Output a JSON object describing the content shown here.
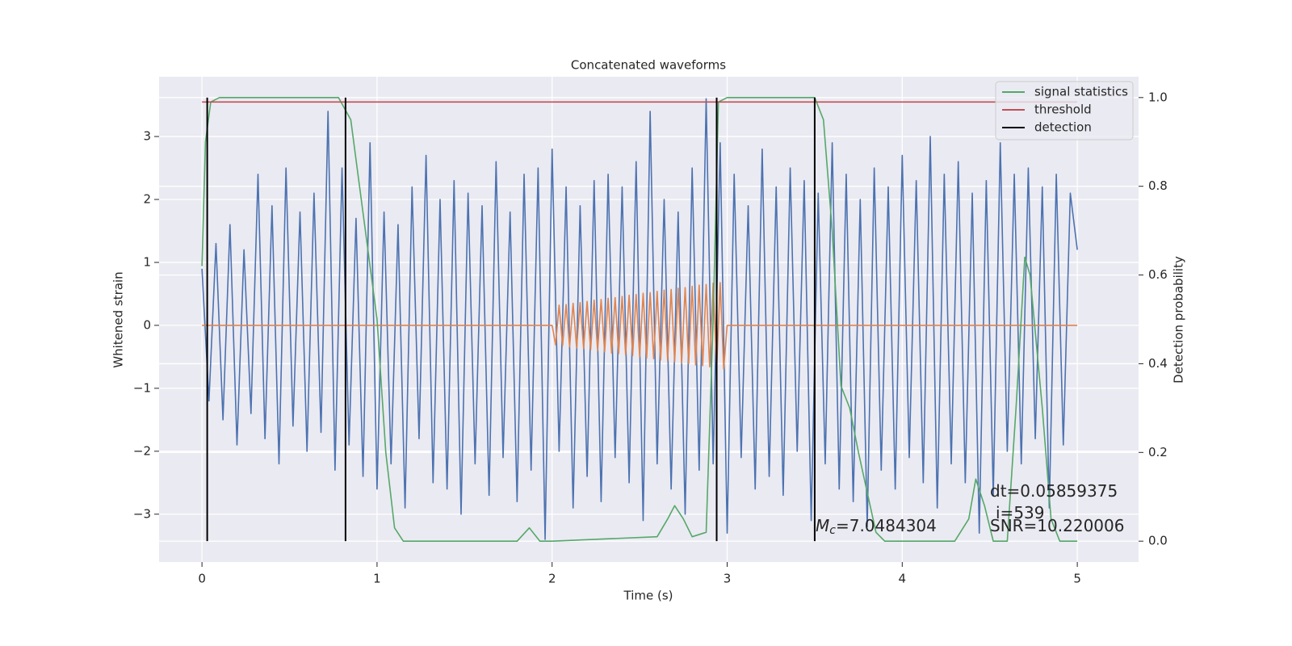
{
  "chart_data": {
    "type": "line",
    "title": "Concatenated waveforms",
    "xlabel": "Time (s)",
    "ylabel": "Whitened strain",
    "y2label": "Detection probability",
    "xlim": [
      -0.245,
      5.35
    ],
    "ylim": [
      -3.76,
      3.95
    ],
    "y2lim": [
      -0.047,
      1.047
    ],
    "xticks": [
      0,
      1,
      2,
      3,
      4,
      5
    ],
    "yticks": [
      {
        "value": -3,
        "label": "−3"
      },
      {
        "value": -2,
        "label": "−2"
      },
      {
        "value": -1,
        "label": "−1"
      },
      0,
      1,
      2,
      3
    ],
    "y2ticks": [
      {
        "value": 0,
        "label": "0.0"
      },
      {
        "value": 0.2,
        "label": "0.2"
      },
      {
        "value": 0.4,
        "label": "0.4"
      },
      {
        "value": 0.6,
        "label": "0.6"
      },
      {
        "value": 0.8,
        "label": "0.8"
      },
      {
        "value": 1,
        "label": "1.0"
      }
    ],
    "grid": true,
    "background": "#eaeaf2",
    "legend": "upper right",
    "series": [
      {
        "color": "#4c72b0",
        "x": [
          0,
          0.04,
          0.08,
          0.12,
          0.16,
          0.2,
          0.24,
          0.28,
          0.32,
          0.36,
          0.4,
          0.44,
          0.48,
          0.52,
          0.56,
          0.6,
          0.64,
          0.68,
          0.72,
          0.76,
          0.8,
          0.84,
          0.88,
          0.92,
          0.96,
          1,
          1.04,
          1.08,
          1.12,
          1.16,
          1.2,
          1.24,
          1.28,
          1.32,
          1.36,
          1.4,
          1.44,
          1.48,
          1.52,
          1.56,
          1.6,
          1.64,
          1.68,
          1.72,
          1.76,
          1.8,
          1.84,
          1.88,
          1.92,
          1.96,
          2,
          2.04,
          2.08,
          2.12,
          2.16,
          2.2,
          2.24,
          2.28,
          2.32,
          2.36,
          2.4,
          2.44,
          2.48,
          2.52,
          2.56,
          2.6,
          2.64,
          2.68,
          2.72,
          2.76,
          2.8,
          2.84,
          2.88,
          2.92,
          2.96,
          3,
          3.04,
          3.08,
          3.12,
          3.16,
          3.2,
          3.24,
          3.28,
          3.32,
          3.36,
          3.4,
          3.44,
          3.48,
          3.52,
          3.56,
          3.6,
          3.64,
          3.68,
          3.72,
          3.76,
          3.8,
          3.84,
          3.88,
          3.92,
          3.96,
          4,
          4.04,
          4.08,
          4.12,
          4.16,
          4.2,
          4.24,
          4.28,
          4.32,
          4.36,
          4.4,
          4.44,
          4.48,
          4.52,
          4.56,
          4.6,
          4.64,
          4.68,
          4.72,
          4.76,
          4.8,
          4.84,
          4.88,
          4.92,
          4.96,
          5
        ],
        "values": [
          0.9,
          -1.2,
          1.3,
          -1.5,
          1.6,
          -1.9,
          1.2,
          -1.4,
          2.4,
          -1.8,
          1.9,
          -2.2,
          2.5,
          -1.6,
          1.8,
          -2.0,
          2.1,
          -1.7,
          3.4,
          -2.3,
          2.5,
          -1.9,
          1.7,
          -2.4,
          2.9,
          -2.6,
          1.8,
          -2.2,
          1.6,
          -2.9,
          2.2,
          -1.8,
          2.7,
          -2.5,
          2.0,
          -2.6,
          2.3,
          -3.0,
          2.1,
          -2.2,
          1.9,
          -2.7,
          2.6,
          -2.1,
          1.8,
          -2.8,
          2.4,
          -2.3,
          2.5,
          -3.4,
          2.8,
          -2.0,
          2.2,
          -2.9,
          1.9,
          -2.4,
          2.3,
          -2.8,
          2.4,
          -2.1,
          2.2,
          -2.5,
          2.6,
          -3.1,
          3.4,
          -2.2,
          2.0,
          -2.6,
          1.8,
          -3.0,
          2.5,
          -2.3,
          3.6,
          -2.2,
          2.9,
          -3.3,
          2.4,
          -2.1,
          1.9,
          -2.6,
          2.8,
          -2.4,
          2.2,
          -2.7,
          2.5,
          -2.0,
          2.3,
          -3.1,
          2.1,
          -2.2,
          2.9,
          -2.6,
          2.4,
          -2.8,
          2.0,
          -3.2,
          2.5,
          -2.3,
          2.2,
          -2.6,
          2.7,
          -2.1,
          2.3,
          -2.5,
          3.0,
          -2.9,
          2.4,
          -2.2,
          2.6,
          -2.5,
          2.1,
          -3.3,
          2.3,
          -2.7,
          2.9,
          -2.0,
          2.4,
          -2.2,
          2.5,
          -1.8,
          2.2,
          -2.9,
          2.4,
          -1.9,
          2.1,
          1.2
        ]
      },
      {
        "color": "#dd8452",
        "x": [
          0,
          2,
          2.02,
          2.04,
          2.06,
          2.08,
          2.1,
          2.12,
          2.14,
          2.16,
          2.18,
          2.2,
          2.22,
          2.24,
          2.26,
          2.28,
          2.3,
          2.32,
          2.34,
          2.36,
          2.38,
          2.4,
          2.42,
          2.44,
          2.46,
          2.48,
          2.5,
          2.52,
          2.54,
          2.56,
          2.58,
          2.6,
          2.62,
          2.64,
          2.66,
          2.68,
          2.7,
          2.72,
          2.74,
          2.76,
          2.78,
          2.8,
          2.82,
          2.84,
          2.86,
          2.88,
          2.9,
          2.92,
          2.94,
          2.96,
          2.98,
          3,
          5
        ],
        "values": [
          0,
          0,
          -0.31,
          0.32,
          -0.32,
          0.33,
          -0.34,
          0.35,
          -0.36,
          0.36,
          -0.37,
          0.38,
          -0.39,
          0.4,
          -0.4,
          0.41,
          -0.42,
          0.43,
          -0.44,
          0.44,
          -0.45,
          0.46,
          -0.47,
          0.48,
          -0.48,
          0.49,
          -0.5,
          0.51,
          -0.52,
          0.52,
          -0.53,
          0.54,
          -0.55,
          0.56,
          -0.56,
          0.57,
          -0.58,
          0.59,
          -0.6,
          0.6,
          -0.61,
          0.62,
          -0.63,
          0.64,
          -0.64,
          0.65,
          -0.66,
          0.67,
          -0.68,
          0.68,
          -0.69,
          0,
          0
        ]
      },
      {
        "name": "signal statistics",
        "color": "#55a868",
        "axis": "y2",
        "x": [
          0,
          0.02,
          0.05,
          0.1,
          0.78,
          0.85,
          0.9,
          1.0,
          1.05,
          1.1,
          1.15,
          1.8,
          1.87,
          1.93,
          2.0,
          2.6,
          2.66,
          2.7,
          2.75,
          2.8,
          2.88,
          2.92,
          2.95,
          3.0,
          3.5,
          3.55,
          3.6,
          3.65,
          3.7,
          3.75,
          3.85,
          3.9,
          4.3,
          4.38,
          4.42,
          4.47,
          4.52,
          4.6,
          4.65,
          4.7,
          4.73,
          4.8,
          4.85,
          4.9,
          5
        ],
        "values": [
          0.62,
          0.9,
          0.99,
          1,
          1,
          0.95,
          0.8,
          0.5,
          0.2,
          0.03,
          0,
          0,
          0.03,
          0,
          0,
          0.01,
          0.05,
          0.08,
          0.05,
          0.01,
          0.02,
          0.5,
          0.99,
          1,
          1,
          0.95,
          0.7,
          0.35,
          0.3,
          0.2,
          0.02,
          0,
          0,
          0.05,
          0.14,
          0.08,
          0,
          0,
          0.3,
          0.64,
          0.6,
          0.3,
          0.05,
          0,
          0
        ]
      },
      {
        "name": "threshold",
        "color": "#c44e52",
        "axis": "y2",
        "x": [
          0,
          5
        ],
        "values": [
          0.99,
          0.99
        ]
      }
    ],
    "vlines": {
      "name": "detection",
      "color": "#000000",
      "axis": "y2",
      "x": [
        0.03,
        0.82,
        2.94,
        3.5
      ],
      "ymin": 0,
      "ymax": 1
    },
    "annotations": [
      {
        "text": "dt=0.05859375"
      },
      {
        "text": "i=539"
      },
      {
        "text": "SNR=10.220006"
      },
      {
        "symbol": "M",
        "subscript": "c",
        "text": "=7.0484304"
      }
    ]
  }
}
